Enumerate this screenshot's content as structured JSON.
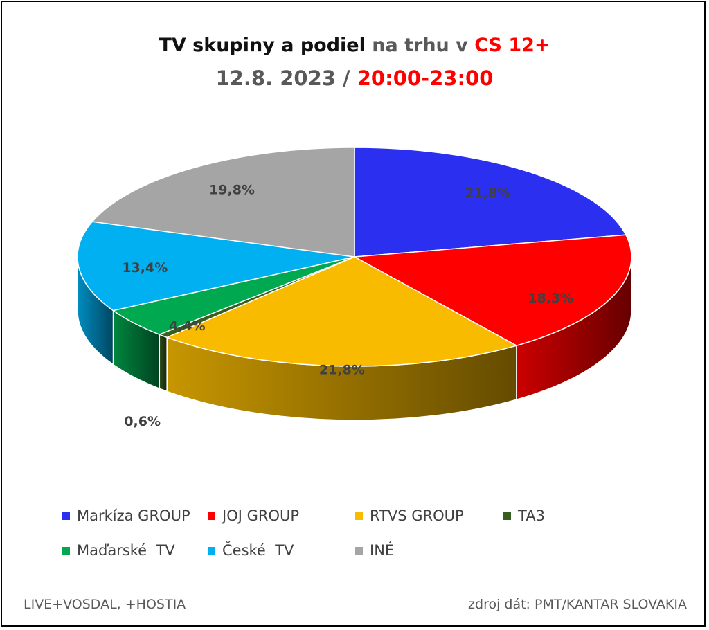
{
  "title": {
    "line1_part1": "TV skupiny a podiel",
    "line1_part2": " na trhu v ",
    "line1_part3": "CS 12+",
    "line2_part1": "12.8. 2023 / ",
    "line2_part2": "20:00-23:00"
  },
  "chart_data": {
    "type": "pie",
    "three_d": true,
    "start": "12 o'clock, clockwise",
    "slices": [
      {
        "name": "Markíza GROUP",
        "value": 21.8,
        "label": "21,8%",
        "color": "#2b2ff0"
      },
      {
        "name": "JOJ GROUP",
        "value": 18.3,
        "label": "18,3%",
        "color": "#ff0000"
      },
      {
        "name": "RTVS GROUP",
        "value": 21.8,
        "label": "21,8%",
        "color": "#f9bb00"
      },
      {
        "name": "TA3",
        "value": 0.6,
        "label": "0,6%",
        "color": "#375e1f"
      },
      {
        "name": "Maďarské  TV",
        "value": 4.4,
        "label": "4,4%",
        "color": "#00a84f"
      },
      {
        "name": "České  TV",
        "value": 13.4,
        "label": "13,4%",
        "color": "#00b0f0"
      },
      {
        "name": "INÉ",
        "value": 19.8,
        "label": "19,8%",
        "color": "#a5a5a5"
      }
    ],
    "legend_position": "bottom"
  },
  "footer": {
    "left": "LIVE+VOSDAL, +HOSTIA",
    "right": "zdroj dát: PMT/KANTAR SLOVAKIA"
  }
}
